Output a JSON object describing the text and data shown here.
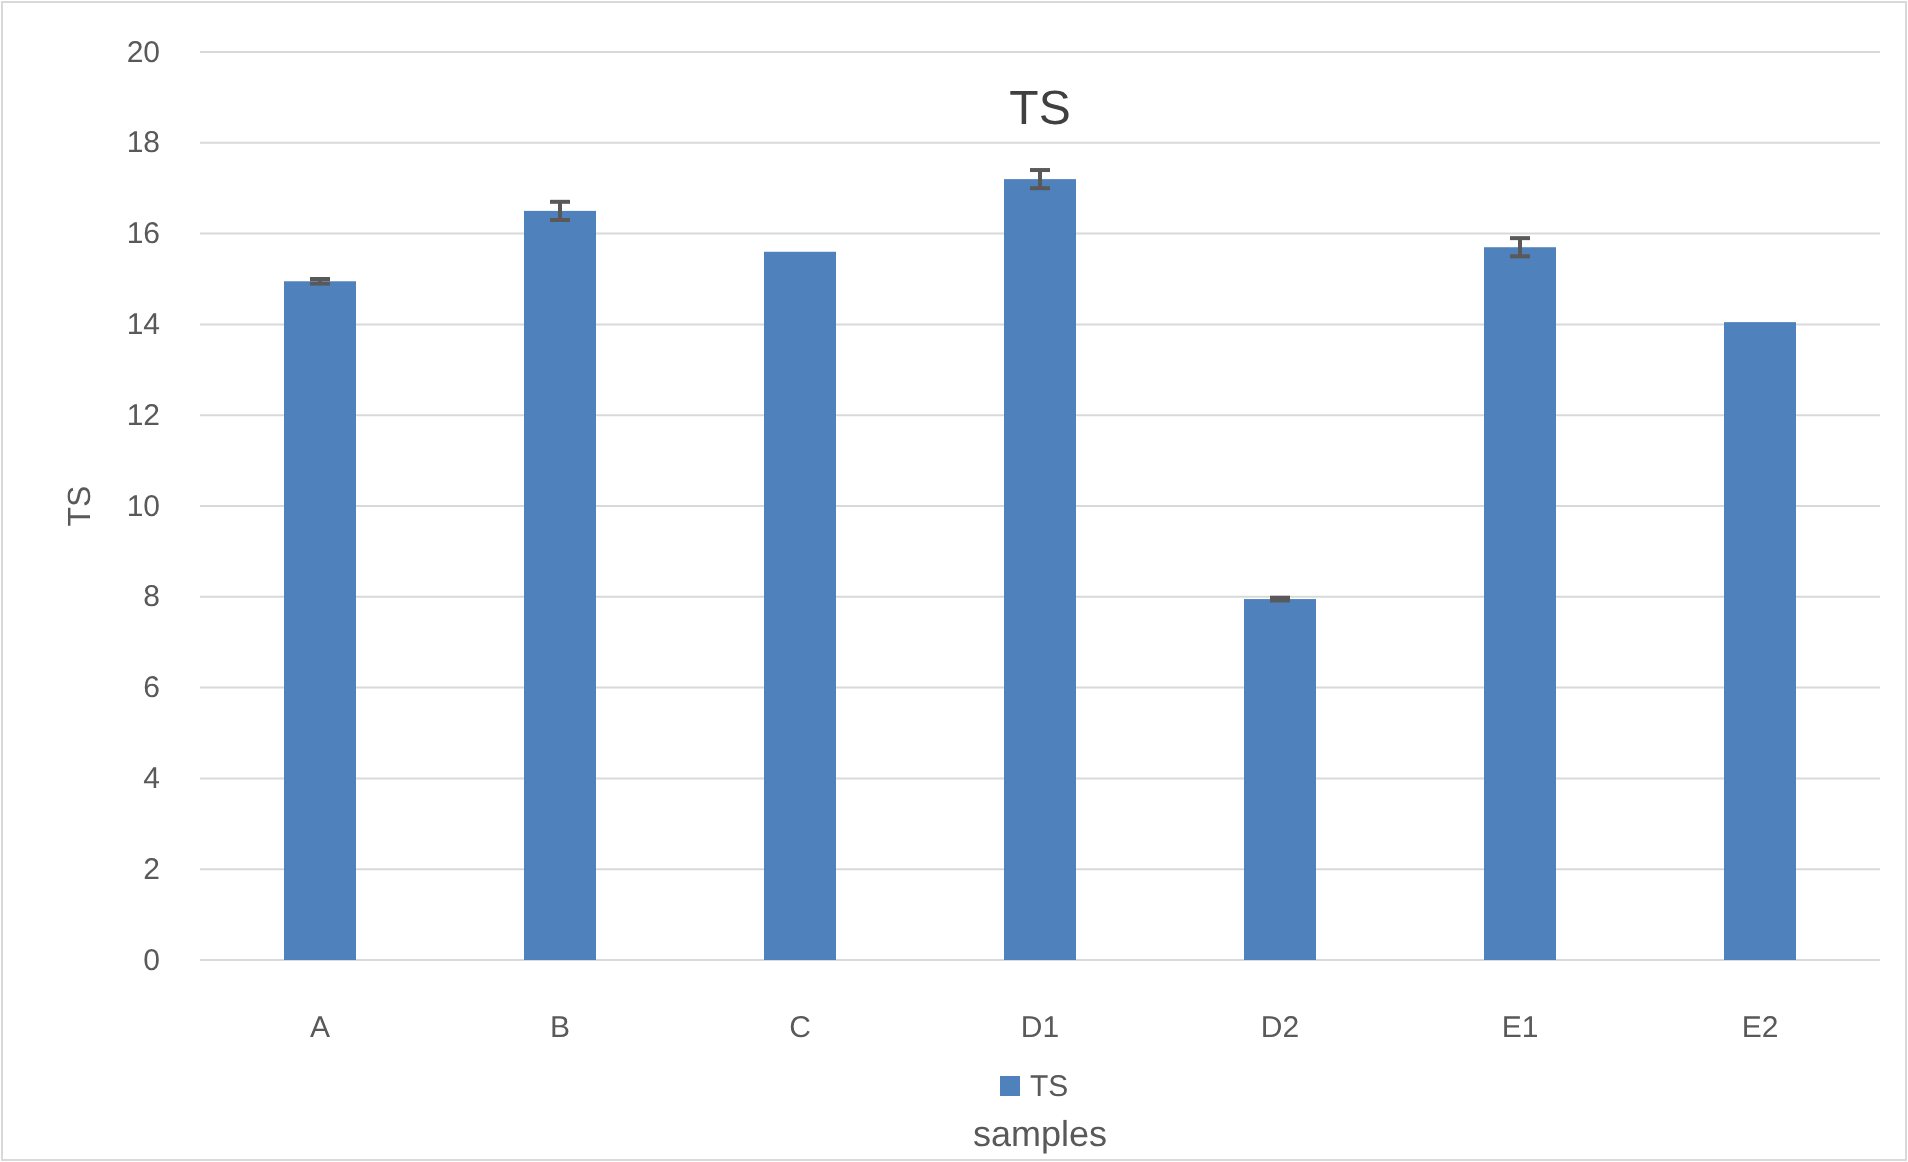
{
  "chart_data": {
    "type": "bar",
    "title": "TS",
    "xlabel": "samples",
    "ylabel": "TS",
    "categories": [
      "A",
      "B",
      "C",
      "D1",
      "D2",
      "E1",
      "E2"
    ],
    "series": [
      {
        "name": "TS",
        "color": "#4f81bd",
        "values": [
          14.95,
          16.5,
          15.6,
          17.2,
          7.95,
          15.7,
          14.05
        ],
        "errors": [
          0.05,
          0.2,
          null,
          0.2,
          0.03,
          0.2,
          null
        ]
      }
    ],
    "ylim": [
      0,
      20
    ],
    "yticks": [
      0,
      2,
      4,
      6,
      8,
      10,
      12,
      14,
      16,
      18,
      20
    ],
    "grid": "y",
    "legend": "bottom"
  }
}
